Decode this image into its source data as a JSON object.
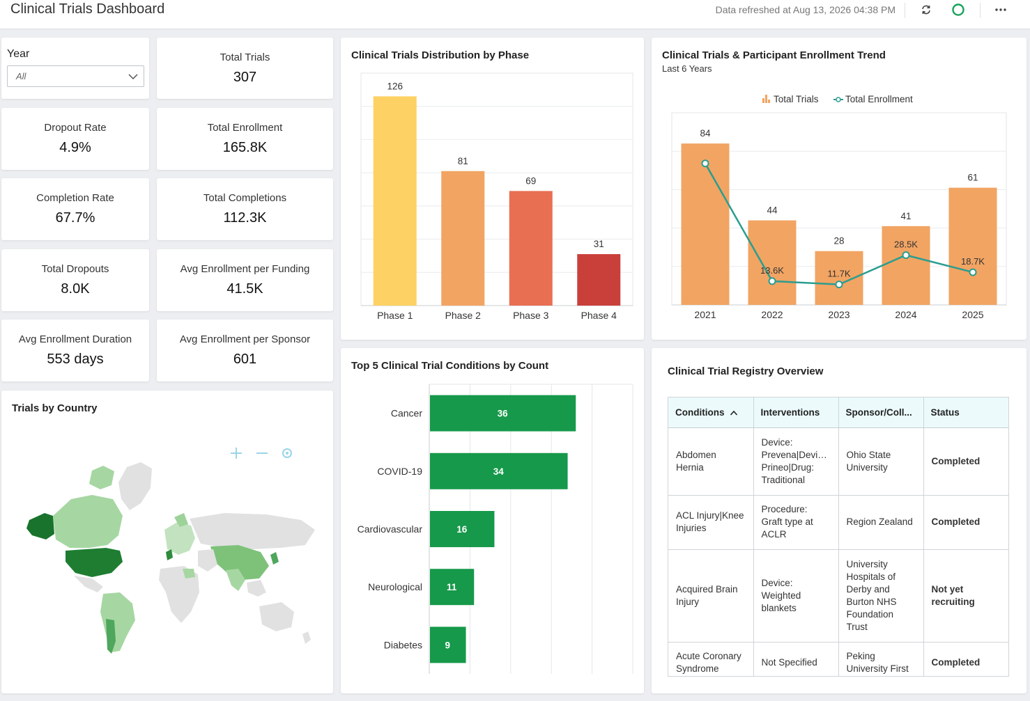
{
  "header": {
    "title": "Clinical Trials Dashboard",
    "refreshed": "Data refreshed at Aug 13, 2026 04:38 PM",
    "icons": [
      "refresh-icon",
      "status-circle-icon",
      "more-icon"
    ]
  },
  "filters": {
    "year_label": "Year",
    "year_value": "All"
  },
  "kpis": {
    "total_trials": {
      "label": "Total Trials",
      "value": "307"
    },
    "dropout_rate": {
      "label": "Dropout Rate",
      "value": "4.9%"
    },
    "total_enrollment": {
      "label": "Total Enrollment",
      "value": "165.8K"
    },
    "completion_rate": {
      "label": "Completion Rate",
      "value": "67.7%"
    },
    "total_completions": {
      "label": "Total Completions",
      "value": "112.3K"
    },
    "total_dropouts": {
      "label": "Total Dropouts",
      "value": "8.0K"
    },
    "avg_enrollment_funding": {
      "label": "Avg Enrollment per Funding",
      "value": "41.5K"
    },
    "avg_enrollment_duration": {
      "label": "Avg Enrollment Duration",
      "value": "553 days"
    },
    "avg_enrollment_sponsor": {
      "label": "Avg Enrollment per Sponsor",
      "value": "601"
    }
  },
  "map": {
    "title": "Trials by Country"
  },
  "phase_chart": {
    "title": "Clinical Trials Distribution by Phase"
  },
  "trend_chart": {
    "title": "Clinical Trials & Participant Enrollment Trend",
    "subtitle": "Last 6 Years",
    "legend_trials": "Total Trials",
    "legend_enrollment": "Total Enrollment"
  },
  "conditions_chart": {
    "title": "Top 5 Clinical Trial Conditions by Count"
  },
  "registry": {
    "title": "Clinical Trial Registry Overview",
    "columns": [
      "Conditions",
      "Interventions",
      "Sponsor/Coll...",
      "Status"
    ],
    "rows": [
      {
        "condition": "Abdomen Hernia",
        "intervention": "Device: Prevena|Devi… Prineo|Drug: Traditional",
        "sponsor": "Ohio State University",
        "status": "Completed"
      },
      {
        "condition": "ACL Injury|Knee Injuries",
        "intervention": "Procedure: Graft type at ACLR",
        "sponsor": "Region Zealand",
        "status": "Completed"
      },
      {
        "condition": "Acquired Brain Injury",
        "intervention": "Device: Weighted blankets",
        "sponsor": "University Hospitals of Derby and Burton NHS Foundation Trust",
        "status": "Not yet recruiting"
      },
      {
        "condition": "Acute Coronary Syndrome",
        "intervention": "Not Specified",
        "sponsor": "Peking University First",
        "status": "Completed"
      }
    ]
  },
  "colors": {
    "phase": [
      "#fdd163",
      "#f2a463",
      "#e86f52",
      "#c9403b"
    ],
    "trend_bar": "#f2a463",
    "trend_line": "#2a9d8f",
    "condition_bar": "#16994a"
  },
  "chart_data": [
    {
      "type": "bar",
      "categories": [
        "Phase 1",
        "Phase 2",
        "Phase 3",
        "Phase 4"
      ],
      "values": [
        126,
        81,
        69,
        31
      ],
      "title": "Clinical Trials Distribution by Phase",
      "ylim": [
        0,
        140
      ],
      "grid": true
    },
    {
      "type": "bar",
      "categories": [
        "2021",
        "2022",
        "2023",
        "2024",
        "2025"
      ],
      "series": [
        {
          "name": "Total Trials",
          "type": "bar",
          "values": [
            84,
            44,
            28,
            41,
            61
          ],
          "labels": [
            "84",
            "44",
            "28",
            "41",
            "61"
          ]
        },
        {
          "name": "Total Enrollment",
          "type": "line",
          "values": [
            81000,
            13600,
            11700,
            28500,
            18700
          ],
          "labels": [
            "",
            "13.6K",
            "11.7K",
            "28.5K",
            "18.7K"
          ]
        }
      ],
      "title": "Clinical Trials & Participant Enrollment Trend",
      "subtitle": "Last 6 Years",
      "ylim": [
        0,
        100
      ],
      "y2lim": [
        0,
        110000
      ],
      "legend": "top-center",
      "grid": true
    },
    {
      "type": "bar",
      "orientation": "horizontal",
      "categories": [
        "Cancer",
        "COVID-19",
        "Cardiovascular",
        "Neurological",
        "Diabetes"
      ],
      "values": [
        36,
        34,
        16,
        11,
        9
      ],
      "title": "Top 5 Clinical Trial Conditions by Count",
      "xlim": [
        0,
        50
      ],
      "grid": true
    }
  ]
}
